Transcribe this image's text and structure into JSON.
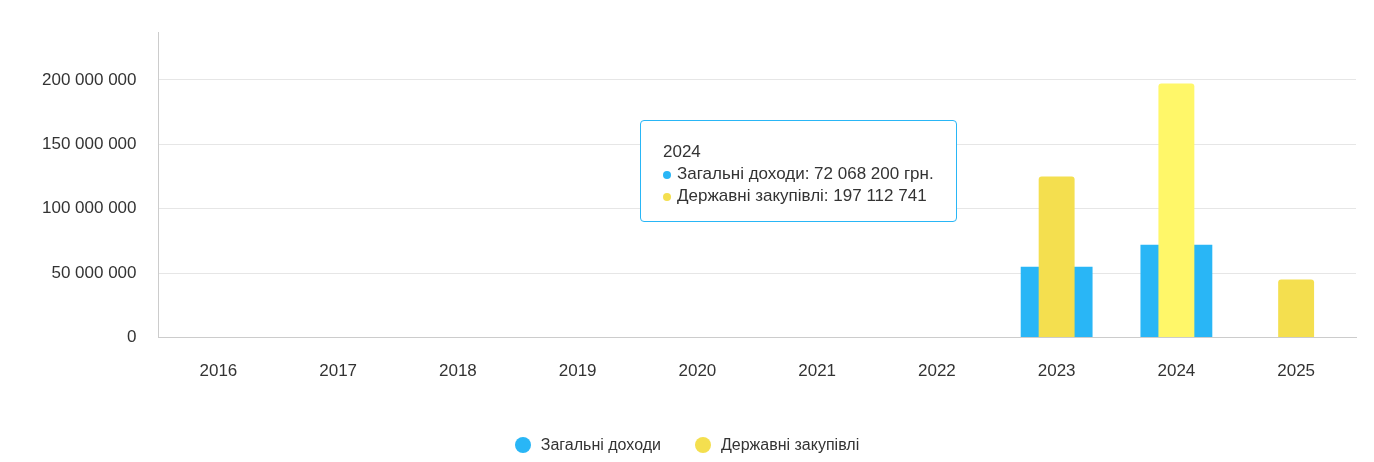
{
  "chart_data": {
    "type": "bar",
    "categories": [
      "2016",
      "2017",
      "2018",
      "2019",
      "2020",
      "2021",
      "2022",
      "2023",
      "2024",
      "2025"
    ],
    "series": [
      {
        "name": "Загальні доходи",
        "color": "#29b6f6",
        "values": [
          0,
          0,
          0,
          0,
          0,
          0,
          0,
          55000000,
          72068200,
          null
        ]
      },
      {
        "name": "Державні закупівлі",
        "color": "#f4df4f",
        "colors": [
          "#f4df4f",
          "#f4df4f",
          "#f4df4f",
          "#f4df4f",
          "#f4df4f",
          "#f4df4f",
          "#f4df4f",
          "#f4df4f",
          "#fff769",
          "#f4df4f"
        ],
        "values": [
          0,
          0,
          0,
          0,
          0,
          0,
          0,
          125000000,
          197112741,
          45000000
        ]
      }
    ],
    "ylim": [
      0,
      237000000
    ],
    "yticks": [
      {
        "value": 0,
        "label": "0"
      },
      {
        "value": 50000000,
        "label": "50 000 000"
      },
      {
        "value": 100000000,
        "label": "100 000 000"
      },
      {
        "value": 150000000,
        "label": "150 000 000"
      },
      {
        "value": 200000000,
        "label": "200 000 000"
      }
    ],
    "grid": "y",
    "legend": "bottom",
    "annotations": [
      "2024",
      "Загальні доходи: 72 068 200 грн.",
      "Державні закупівлі: 197 112 741"
    ]
  }
}
